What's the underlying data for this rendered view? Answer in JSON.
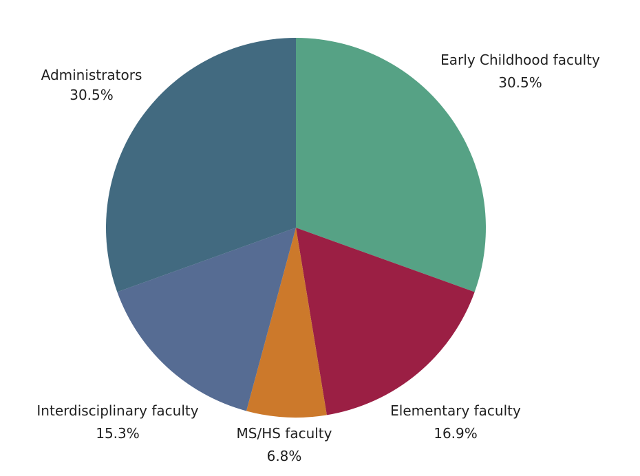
{
  "chart_data": {
    "type": "pie",
    "start_angle_deg": 0,
    "direction": "clockwise",
    "legend": "none",
    "slices": [
      {
        "label": "Early Childhood faculty",
        "value": 30.5,
        "value_label": "30.5%",
        "color": "#56A285"
      },
      {
        "label": "Elementary faculty",
        "value": 16.9,
        "value_label": "16.9%",
        "color": "#9B1F44"
      },
      {
        "label": "MS/HS faculty",
        "value": 6.8,
        "value_label": "6.8%",
        "color": "#CC792B"
      },
      {
        "label": "Interdisciplinary faculty",
        "value": 15.3,
        "value_label": "15.3%",
        "color": "#566C93"
      },
      {
        "label": "Administrators",
        "value": 30.5,
        "value_label": "30.5%",
        "color": "#426A80"
      }
    ]
  }
}
